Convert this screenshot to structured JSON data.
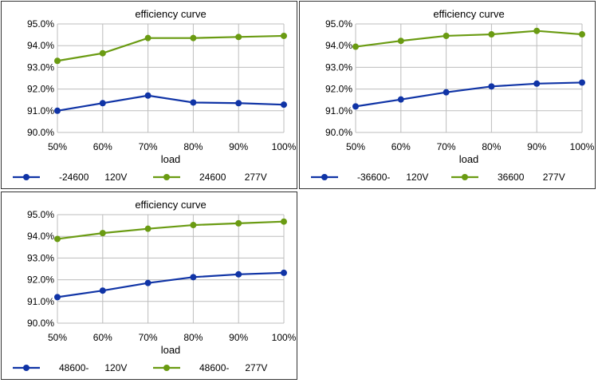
{
  "colors": {
    "blue": "#1034a6",
    "green": "#6a9b12",
    "grid": "#bdbdbd"
  },
  "chart_data": [
    {
      "type": "line",
      "title": "efficiency curve",
      "xlabel": "load",
      "ylabel": "",
      "categories": [
        "50%",
        "60%",
        "70%",
        "80%",
        "90%",
        "100%"
      ],
      "ylim": [
        90.0,
        95.0
      ],
      "yticks": [
        "90.0%",
        "91.0%",
        "92.0%",
        "93.0%",
        "94.0%",
        "95.0%"
      ],
      "grid": true,
      "legend_position": "bottom",
      "series": [
        {
          "name": "-24600      120V",
          "color": "#1034a6",
          "values": [
            91.0,
            91.35,
            91.7,
            91.38,
            91.35,
            91.28
          ]
        },
        {
          "name": "24600       277V",
          "color": "#6a9b12",
          "values": [
            93.3,
            93.65,
            94.35,
            94.35,
            94.4,
            94.45
          ]
        }
      ]
    },
    {
      "type": "line",
      "title": "efficiency curve",
      "xlabel": "load",
      "ylabel": "",
      "categories": [
        "50%",
        "60%",
        "70%",
        "80%",
        "90%",
        "100%"
      ],
      "ylim": [
        90.0,
        95.0
      ],
      "yticks": [
        "90.0%",
        "91.0%",
        "92.0%",
        "93.0%",
        "94.0%",
        "95.0%"
      ],
      "grid": true,
      "legend_position": "bottom",
      "series": [
        {
          "name": "-36600-      120V",
          "color": "#1034a6",
          "values": [
            91.2,
            91.52,
            91.85,
            92.12,
            92.25,
            92.3
          ]
        },
        {
          "name": "36600       277V",
          "color": "#6a9b12",
          "values": [
            93.95,
            94.22,
            94.45,
            94.52,
            94.68,
            94.52
          ]
        }
      ]
    },
    {
      "type": "line",
      "title": "efficiency curve",
      "xlabel": "load",
      "ylabel": "",
      "categories": [
        "50%",
        "60%",
        "70%",
        "80%",
        "90%",
        "100%"
      ],
      "ylim": [
        90.0,
        95.0
      ],
      "yticks": [
        "90.0%",
        "91.0%",
        "92.0%",
        "93.0%",
        "94.0%",
        "95.0%"
      ],
      "grid": true,
      "legend_position": "bottom",
      "series": [
        {
          "name": "48600-      120V",
          "color": "#1034a6",
          "values": [
            91.2,
            91.5,
            91.85,
            92.12,
            92.25,
            92.32
          ]
        },
        {
          "name": "48600-      277V",
          "color": "#6a9b12",
          "values": [
            93.88,
            94.15,
            94.35,
            94.52,
            94.6,
            94.68
          ]
        }
      ]
    }
  ]
}
